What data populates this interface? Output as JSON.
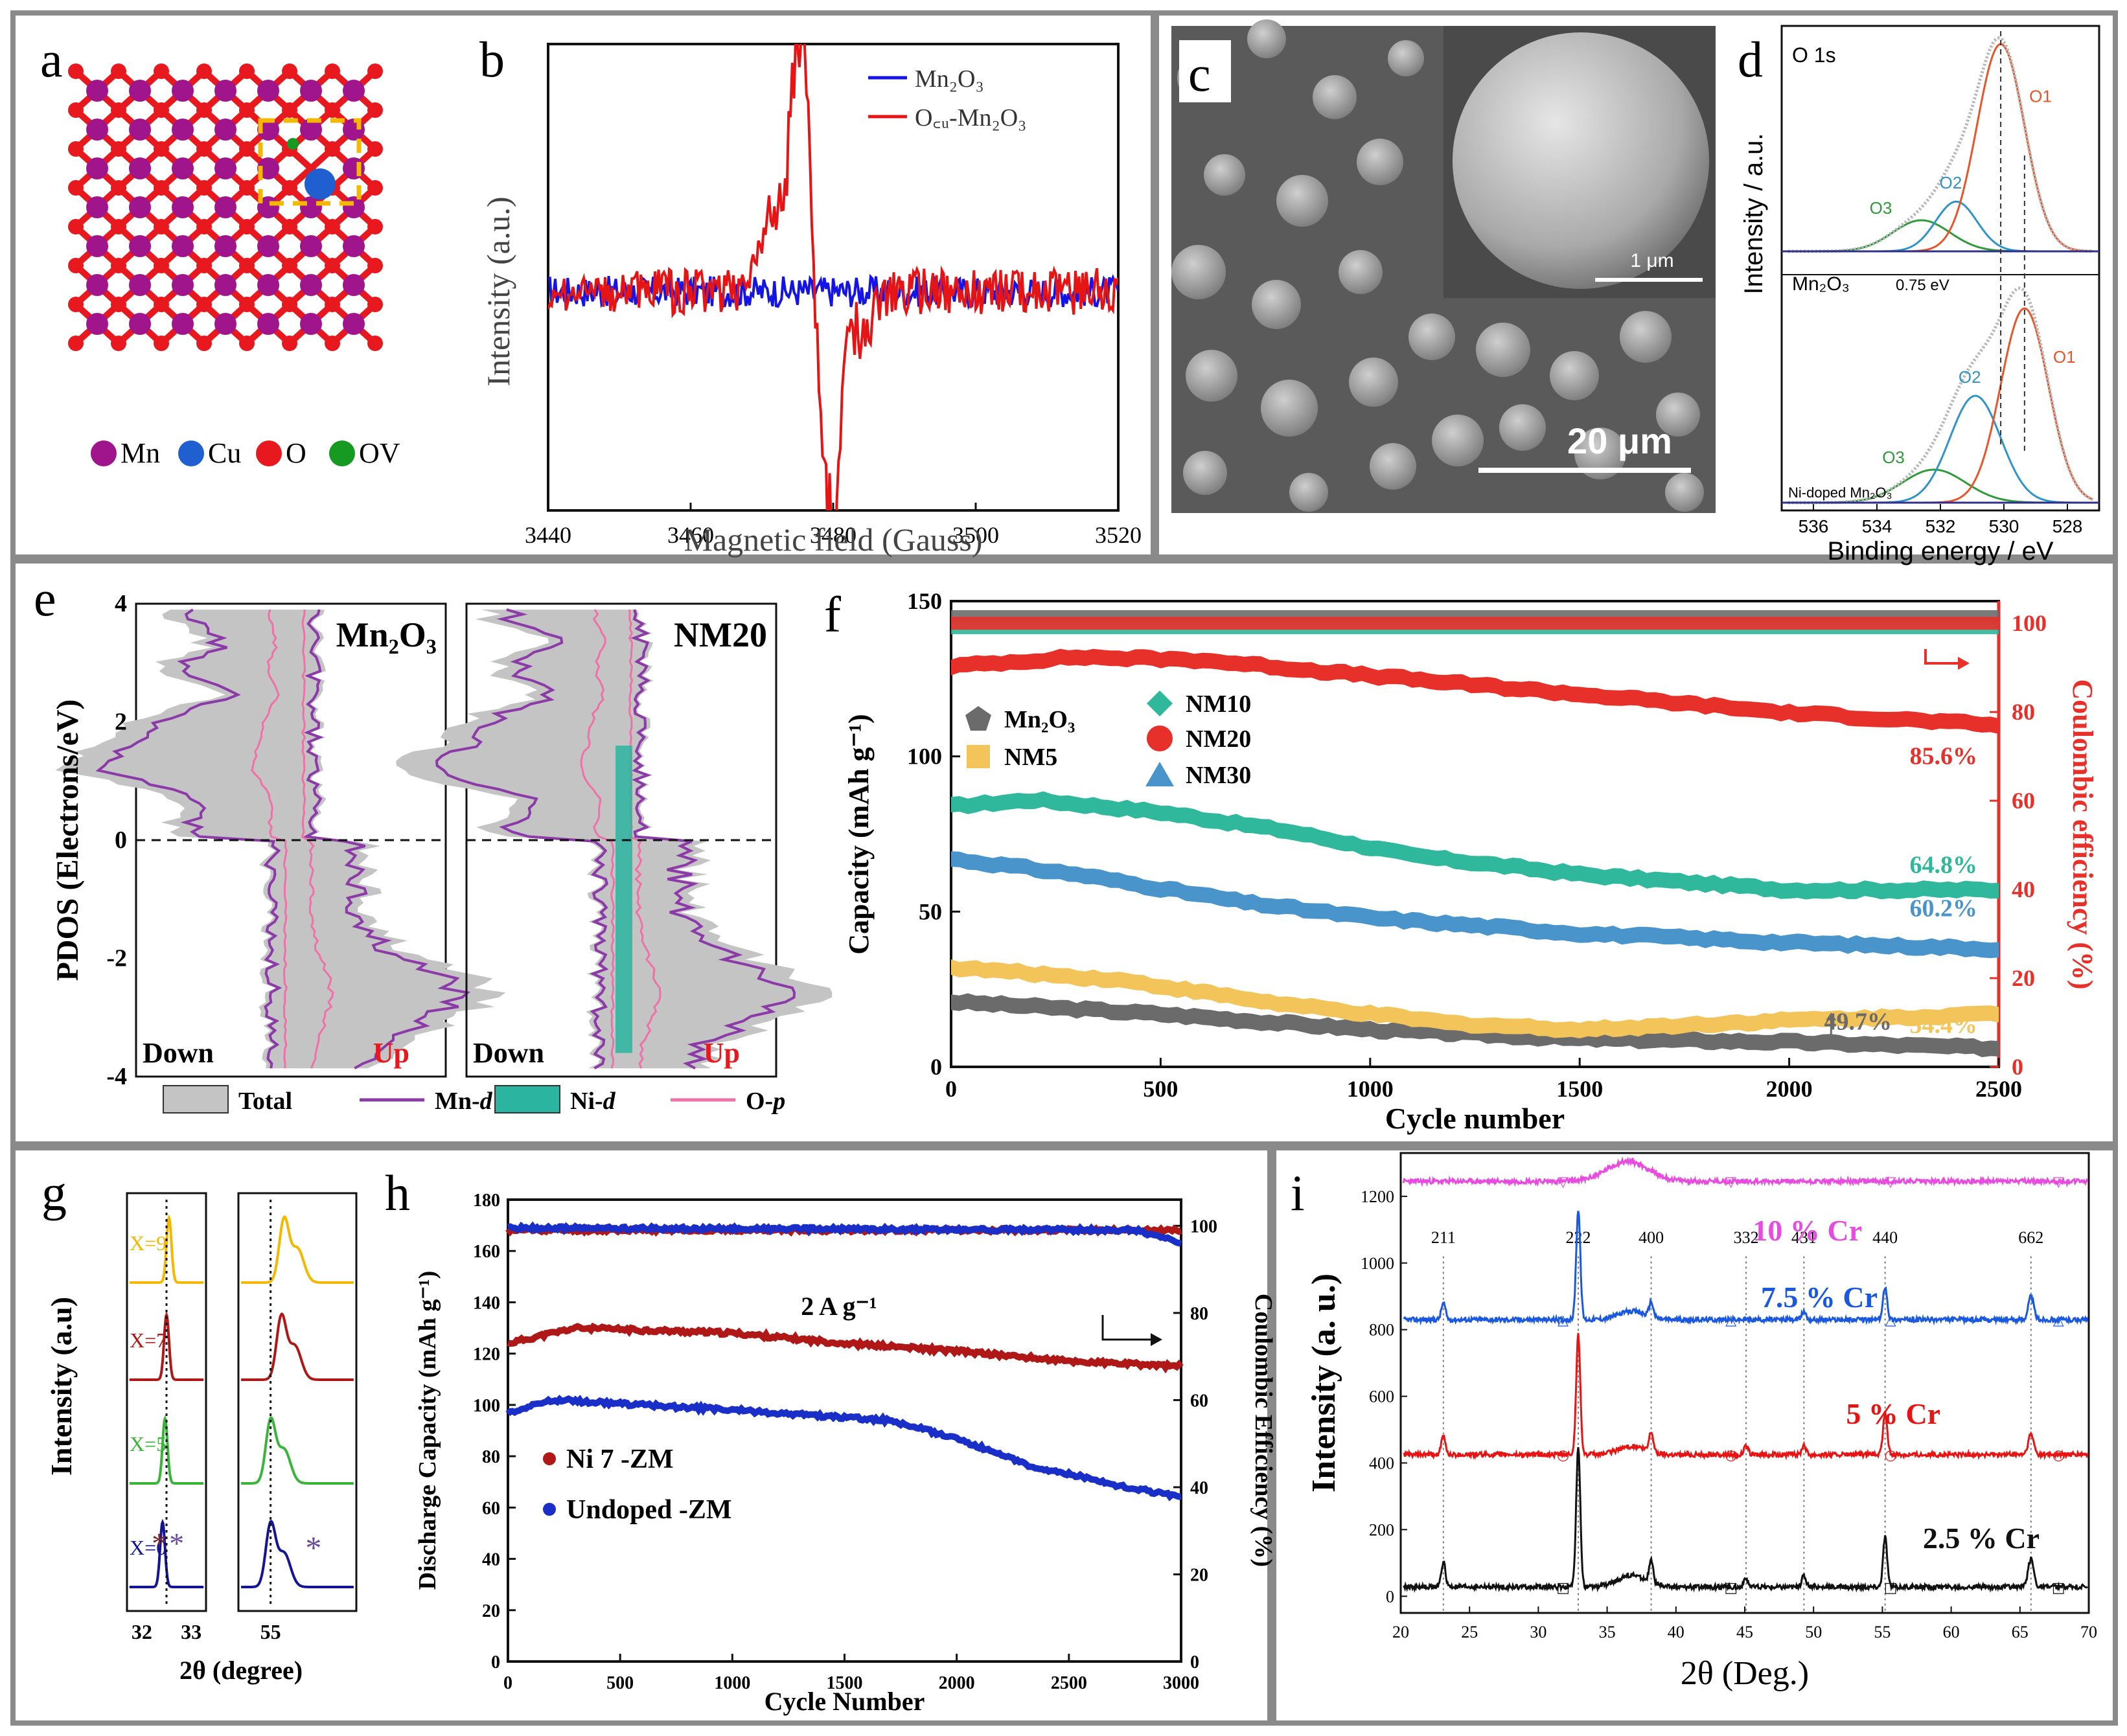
{
  "figure": {
    "frame_color": "#8a8a8a"
  },
  "panels": [
    {
      "id": "a",
      "letter": "a",
      "legend": [
        {
          "label": "Mn",
          "color": "#a0148c"
        },
        {
          "label": "Cu",
          "color": "#1f5fd0"
        },
        {
          "label": "O",
          "color": "#e8191e"
        },
        {
          "label": "OV",
          "color": "#169a22"
        }
      ]
    },
    {
      "id": "b",
      "letter": "b",
      "chart_data": {
        "type": "line",
        "xlabel": "Magnetic field (Gauss)",
        "ylabel": "Intensity (a.u.)",
        "xlim": [
          3440,
          3520
        ],
        "xticks": [
          "3440",
          "3460",
          "3480",
          "3500",
          "3520"
        ],
        "series": [
          {
            "name": "Mn2O3",
            "legend": "Mn₂O₃",
            "color": "#1414e6",
            "kind": "noise",
            "amp": 0.04,
            "events": []
          },
          {
            "name": "OCu-Mn2O3",
            "legend": "O꜀ᵤ-Mn₂O₃",
            "color": "#e61414",
            "kind": "noise",
            "amp": 0.06,
            "events": [
              [
                3472,
                0.18,
                2.2
              ],
              [
                3475,
                0.55,
                1.0
              ],
              [
                3476.5,
                0.25,
                0.7
              ],
              [
                3480,
                -0.6,
                0.9
              ],
              [
                3478.5,
                -0.25,
                0.9
              ],
              [
                3484,
                -0.12,
                1.5
              ]
            ]
          }
        ]
      }
    },
    {
      "id": "c",
      "letter": "c",
      "scale_main": "20 μm",
      "scale_inset": "1 μm"
    },
    {
      "id": "d",
      "letter": "d",
      "chart_data": {
        "type": "line",
        "title": "O 1s",
        "xlabel": "Binding energy / eV",
        "ylabel": "Intensity / a.u.",
        "xlim": [
          537,
          527
        ],
        "xticks": [
          "536",
          "534",
          "532",
          "530",
          "528"
        ],
        "labels": {
          "top": "Mn₂O₃",
          "bottom": "Ni-doped Mn₂O₃",
          "shift": "0.75 eV",
          "O1": "O1",
          "O2": "O2",
          "O3": "O3"
        },
        "subplots": [
          {
            "name": "Mn2O3",
            "O1": {
              "center": 530.1,
              "height": 1.0,
              "width": 0.75
            },
            "O2": {
              "center": 531.5,
              "height": 0.24,
              "width": 0.65
            },
            "O3": {
              "center": 532.6,
              "height": 0.15,
              "width": 0.9
            }
          },
          {
            "name": "Ni-doped Mn2O3",
            "O1": {
              "center": 529.35,
              "height": 1.0,
              "width": 0.75
            },
            "O2": {
              "center": 530.9,
              "height": 0.55,
              "width": 0.8
            },
            "O3": {
              "center": 532.2,
              "height": 0.17,
              "width": 1.0
            }
          }
        ],
        "colors": {
          "O1": "#e8552a",
          "O2": "#2f94c8",
          "O3": "#2e9a3a",
          "data": "#b8b8b8",
          "base": "#30308a"
        }
      }
    },
    {
      "id": "e",
      "letter": "e",
      "chart_data": {
        "type": "area",
        "ylabel": "PDOS (Electrons/eV)",
        "ylim": [
          -4,
          4
        ],
        "yticks": [
          "4",
          "2",
          "0",
          "-2",
          "-4"
        ],
        "subplots": [
          "Mn₂O₃",
          "NM20"
        ],
        "down_label": "Down",
        "up_label": "Up",
        "legend": [
          {
            "label": "Total",
            "color": "#c4c4c4",
            "kind": "box"
          },
          {
            "label": "Mn-",
            "italic": "d",
            "color": "#8b3aa8",
            "kind": "line"
          },
          {
            "label": "Ni-",
            "italic": "d",
            "color": "#2bb5a0",
            "kind": "box"
          },
          {
            "label": "O-",
            "italic": "p",
            "color": "#f070a8",
            "kind": "line"
          }
        ]
      }
    },
    {
      "id": "f",
      "letter": "f",
      "chart_data": {
        "type": "scatter",
        "xlabel": "Cycle number",
        "ylabel": "Capacity (mAh g⁻¹)",
        "y2label": "Coulombic efficiency (%)",
        "xlim": [
          0,
          2500
        ],
        "ylim": [
          0,
          150
        ],
        "y2lim": [
          0,
          105
        ],
        "xticks": [
          "0",
          "500",
          "1000",
          "1500",
          "2000",
          "2500"
        ],
        "yticks": [
          "0",
          "50",
          "100",
          "150"
        ],
        "y2ticks": [
          "0",
          "20",
          "40",
          "60",
          "80",
          "100"
        ],
        "series": [
          {
            "name": "Mn₂O₃",
            "color": "#6b6b6b",
            "points": [
              [
                0,
                21
              ],
              [
                500,
                17
              ],
              [
                1000,
                12
              ],
              [
                1500,
                9
              ],
              [
                2000,
                8
              ],
              [
                2500,
                6
              ]
            ],
            "retention": ""
          },
          {
            "name": "NM5",
            "color": "#f2c45a",
            "points": [
              [
                0,
                32
              ],
              [
                400,
                28
              ],
              [
                800,
                20
              ],
              [
                1200,
                14
              ],
              [
                1500,
                12
              ],
              [
                2000,
                15
              ],
              [
                2500,
                17
              ]
            ],
            "retention": "54.4%"
          },
          {
            "name": "NM10",
            "color": "#2fb89c",
            "points": [
              [
                0,
                84
              ],
              [
                200,
                86
              ],
              [
                500,
                82
              ],
              [
                800,
                76
              ],
              [
                1100,
                68
              ],
              [
                1500,
                62
              ],
              [
                2000,
                57
              ],
              [
                2500,
                57
              ]
            ],
            "retention": "64.8%"
          },
          {
            "name": "NM20",
            "color": "#e8302a",
            "points": [
              [
                0,
                129
              ],
              [
                300,
                132
              ],
              [
                600,
                131
              ],
              [
                1000,
                126
              ],
              [
                1500,
                120
              ],
              [
                2000,
                114
              ],
              [
                2500,
                110
              ]
            ],
            "retention": "85.6%"
          },
          {
            "name": "NM30",
            "color": "#4a94cc",
            "points": [
              [
                0,
                67
              ],
              [
                300,
                62
              ],
              [
                700,
                53
              ],
              [
                1000,
                48
              ],
              [
                1500,
                43
              ],
              [
                2000,
                40
              ],
              [
                2500,
                38
              ]
            ],
            "retention": "60.2%"
          }
        ],
        "ce": [
          {
            "name": "CE-Mn2O3",
            "color": "#6b6b6b",
            "value": 101.5
          },
          {
            "name": "CE-NM10",
            "color": "#2fb89c",
            "value": 99
          },
          {
            "name": "CE-NM20",
            "color": "#e8302a",
            "value": 100
          }
        ],
        "annotation": "49.7%"
      }
    },
    {
      "id": "g",
      "letter": "g",
      "chart_data": {
        "type": "line",
        "ylabel": "Intensity (a.u)",
        "xlabel": "2θ (degree)",
        "left_xticks": [
          "32",
          "33"
        ],
        "right_xticks": [
          "55"
        ],
        "series": [
          {
            "name": "X=9",
            "color": "#f5b800",
            "left_center": 32.55,
            "right_center": 55.25
          },
          {
            "name": "X=7",
            "color": "#b01818",
            "left_center": 32.5,
            "right_center": 55.2
          },
          {
            "name": "X=5",
            "color": "#3ab53a",
            "left_center": 32.47,
            "right_center": 55.0
          },
          {
            "name": "X=0",
            "color": "#141496",
            "left_center": 32.42,
            "right_center": 55.0
          }
        ],
        "star": "*"
      }
    },
    {
      "id": "h",
      "letter": "h",
      "chart_data": {
        "type": "scatter",
        "xlabel": "Cycle Number",
        "ylabel": "Discharge Capacity (mAh g⁻¹)",
        "y2label": "Coulombic Efficiency (%)",
        "xlim": [
          0,
          3000
        ],
        "ylim": [
          0,
          180
        ],
        "y2lim": [
          0,
          106
        ],
        "xticks": [
          "0",
          "500",
          "1000",
          "1500",
          "2000",
          "2500",
          "3000"
        ],
        "yticks": [
          "0",
          "20",
          "40",
          "60",
          "80",
          "100",
          "120",
          "140",
          "160",
          "180"
        ],
        "y2ticks": [
          "0",
          "20",
          "40",
          "60",
          "80",
          "100"
        ],
        "rate": "2 A g⁻¹",
        "series": [
          {
            "name": "Ni 7 -ZM",
            "color": "#b01818",
            "points": [
              [
                0,
                124
              ],
              [
                300,
                130
              ],
              [
                1000,
                128
              ],
              [
                1500,
                124
              ],
              [
                2000,
                121
              ],
              [
                2500,
                117
              ],
              [
                3000,
                115
              ]
            ],
            "ce": [
              [
                0,
                99
              ],
              [
                3000,
                99
              ]
            ]
          },
          {
            "name": "Undoped -ZM",
            "color": "#1a2fc8",
            "points": [
              [
                0,
                97
              ],
              [
                200,
                102
              ],
              [
                1000,
                98
              ],
              [
                1700,
                94
              ],
              [
                2000,
                87
              ],
              [
                2300,
                77
              ],
              [
                2700,
                69
              ],
              [
                3000,
                64
              ]
            ],
            "ce": [
              [
                0,
                99.5
              ],
              [
                2800,
                99
              ],
              [
                3000,
                96
              ]
            ]
          }
        ]
      }
    },
    {
      "id": "i",
      "letter": "i",
      "chart_data": {
        "type": "line",
        "xlabel": "2θ (Deg.)",
        "ylabel": "Intensity (a. u.)",
        "xlim": [
          20,
          70
        ],
        "ylim": [
          -50,
          1330
        ],
        "xticks": [
          "20",
          "25",
          "30",
          "35",
          "40",
          "45",
          "50",
          "55",
          "60",
          "65",
          "70"
        ],
        "yticks": [
          "0",
          "200",
          "400",
          "600",
          "800",
          "1000",
          "1200"
        ],
        "peak_labels": [
          {
            "label": "211",
            "x": 23.1
          },
          {
            "label": "222",
            "x": 32.9
          },
          {
            "label": "400",
            "x": 38.2
          },
          {
            "label": "332",
            "x": 45.1
          },
          {
            "label": "431",
            "x": 49.3
          },
          {
            "label": "440",
            "x": 55.2
          },
          {
            "label": "662",
            "x": 65.8
          }
        ],
        "series": [
          {
            "name": "10 % Cr",
            "color": "#e84be0",
            "offset": 1245,
            "peaks": [
              [
                36.5,
                60,
                1.5
              ]
            ],
            "marker": "▽"
          },
          {
            "name": "7.5 % Cr",
            "color": "#1a58e0",
            "offset": 830,
            "peaks": [
              [
                23.1,
                50,
                0.15
              ],
              [
                32.9,
                330,
                0.15
              ],
              [
                38.2,
                45,
                0.15
              ],
              [
                49.3,
                25,
                0.15
              ],
              [
                55.2,
                100,
                0.15
              ],
              [
                65.8,
                70,
                0.2
              ],
              [
                36.8,
                25,
                1.0
              ]
            ],
            "marker": "△"
          },
          {
            "name": "5 % Cr",
            "color": "#e81414",
            "offset": 425,
            "peaks": [
              [
                23.1,
                55,
                0.15
              ],
              [
                32.9,
                360,
                0.15
              ],
              [
                38.2,
                60,
                0.15
              ],
              [
                45.1,
                25,
                0.15
              ],
              [
                49.3,
                30,
                0.15
              ],
              [
                55.2,
                125,
                0.15
              ],
              [
                65.8,
                60,
                0.2
              ],
              [
                36.8,
                25,
                1.0
              ]
            ],
            "marker": "○"
          },
          {
            "name": "2.5 % Cr",
            "color": "#111111",
            "offset": 28,
            "peaks": [
              [
                23.1,
                75,
                0.15
              ],
              [
                32.9,
                420,
                0.15
              ],
              [
                38.2,
                65,
                0.15
              ],
              [
                45.1,
                25,
                0.15
              ],
              [
                49.3,
                35,
                0.15
              ],
              [
                55.2,
                150,
                0.15
              ],
              [
                65.8,
                85,
                0.2
              ],
              [
                36.8,
                35,
                1.0
              ]
            ],
            "marker": "□"
          }
        ]
      }
    }
  ]
}
